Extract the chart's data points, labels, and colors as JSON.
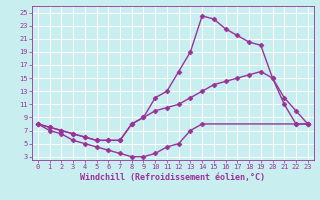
{
  "xlabel": "Windchill (Refroidissement éolien,°C)",
  "background_color": "#c8eef0",
  "grid_color": "#ffffff",
  "line_color": "#993399",
  "xlim": [
    -0.5,
    23.5
  ],
  "ylim": [
    2.5,
    26
  ],
  "xticks": [
    0,
    1,
    2,
    3,
    4,
    5,
    6,
    7,
    8,
    9,
    10,
    11,
    12,
    13,
    14,
    15,
    16,
    17,
    18,
    19,
    20,
    21,
    22,
    23
  ],
  "yticks": [
    3,
    5,
    7,
    9,
    11,
    13,
    15,
    17,
    19,
    21,
    23,
    25
  ],
  "line1_x": [
    0,
    1,
    2,
    3,
    4,
    5,
    6,
    7,
    8,
    9,
    10,
    11,
    12,
    13,
    14,
    22,
    23
  ],
  "line1_y": [
    8,
    7,
    6.5,
    5.5,
    5,
    4.5,
    4,
    3.5,
    3,
    3,
    3.5,
    4.5,
    5,
    7,
    8,
    8,
    8
  ],
  "line2_x": [
    0,
    1,
    2,
    3,
    4,
    5,
    6,
    7,
    8,
    9,
    10,
    11,
    12,
    13,
    14,
    15,
    16,
    17,
    18,
    19,
    20,
    21,
    22,
    23
  ],
  "line2_y": [
    8,
    7.5,
    7,
    6.5,
    6,
    5.5,
    5.5,
    5.5,
    8,
    9,
    12,
    13,
    16,
    19,
    24.5,
    24,
    22.5,
    21.5,
    20.5,
    20,
    15,
    11,
    8,
    8
  ],
  "line3_x": [
    0,
    1,
    2,
    3,
    4,
    5,
    6,
    7,
    8,
    9,
    10,
    11,
    12,
    13,
    14,
    15,
    16,
    17,
    18,
    19,
    20,
    21,
    22,
    23
  ],
  "line3_y": [
    8,
    7.5,
    7,
    6.5,
    6,
    5.5,
    5.5,
    5.5,
    8,
    9,
    10,
    10.5,
    11,
    12,
    13,
    14,
    14.5,
    15,
    15.5,
    16,
    15,
    12,
    10,
    8
  ],
  "marker": "D",
  "markersize": 2.5,
  "linewidth": 1.0,
  "tick_fontsize": 5,
  "label_fontsize": 6
}
